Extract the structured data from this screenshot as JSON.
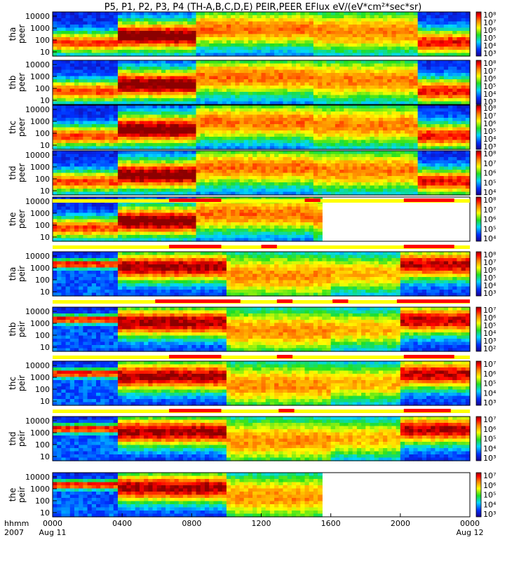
{
  "chart_data": {
    "type": "heatmap",
    "title": "P5, P1, P2, P3, P4 (TH-A,B,C,D,E) PEIR,PEER EFlux eV/(eV*cm²*sec*sr)",
    "x_axis": {
      "range_hours": [
        0,
        24
      ],
      "ticks": [
        {
          "label": "0000",
          "sub": "Aug 11"
        },
        {
          "label": "0400"
        },
        {
          "label": "0800"
        },
        {
          "label": "1200"
        },
        {
          "label": "1600"
        },
        {
          "label": "2000"
        },
        {
          "label": "0000",
          "sub": "Aug 12"
        }
      ],
      "left_label_top": "hhmm",
      "left_label_bottom": "2007"
    },
    "y_ticks": [
      "10000",
      "1000",
      "100",
      "10"
    ],
    "panels": [
      {
        "probe": "tha",
        "species": "peer",
        "colorbar": [
          "10⁸",
          "10⁷",
          "10⁶",
          "10⁵",
          "10⁴",
          "10³"
        ],
        "gap_start_hour": null
      },
      {
        "probe": "thb",
        "species": "peer",
        "colorbar": [
          "10⁸",
          "10⁷",
          "10⁶",
          "10⁵",
          "10⁴",
          "10³"
        ],
        "gap_start_hour": null
      },
      {
        "probe": "thc",
        "species": "peer",
        "colorbar": [
          "10⁸",
          "10⁷",
          "10⁶",
          "10⁵",
          "10⁴",
          "10³"
        ],
        "gap_start_hour": null
      },
      {
        "probe": "thd",
        "species": "peer",
        "colorbar": [
          "10⁸",
          "10⁷",
          "10⁶",
          "10⁵",
          "10⁴"
        ],
        "gap_start_hour": null
      },
      {
        "probe": "the",
        "species": "peer",
        "colorbar": [
          "10⁸",
          "10⁷",
          "10⁶",
          "10⁵",
          "10⁴"
        ],
        "gap_start_hour": 15.6
      },
      {
        "probe": "tha",
        "species": "peir",
        "colorbar": [
          "10⁸",
          "10⁷",
          "10⁶",
          "10⁵",
          "10⁴",
          "10³"
        ],
        "gap_start_hour": null
      },
      {
        "probe": "thb",
        "species": "peir",
        "colorbar": [
          "10⁷",
          "10⁶",
          "10⁵",
          "10⁴",
          "10³",
          "10²"
        ],
        "gap_start_hour": null
      },
      {
        "probe": "thc",
        "species": "peir",
        "colorbar": [
          "10⁷",
          "10⁶",
          "10⁵",
          "10⁴",
          "10³"
        ],
        "gap_start_hour": null
      },
      {
        "probe": "thd",
        "species": "peir",
        "colorbar": [
          "10⁷",
          "10⁶",
          "10⁵",
          "10⁴",
          "10³"
        ],
        "gap_start_hour": null
      },
      {
        "probe": "the",
        "species": "peir",
        "colorbar": [
          "10⁷",
          "10⁶",
          "10⁵",
          "10⁴",
          "10³"
        ],
        "gap_start_hour": 15.6
      }
    ],
    "mode_bars": [
      {
        "after_panel": 4,
        "fast_intervals_hours": [
          [
            6.7,
            9.7
          ],
          [
            14.5,
            15.4
          ],
          [
            20.2,
            23.1
          ]
        ]
      },
      {
        "after_panel": 5,
        "fast_intervals_hours": [
          [
            6.7,
            9.7
          ],
          [
            12.0,
            12.9
          ],
          [
            20.2,
            23.1
          ]
        ]
      },
      {
        "after_panel": 6,
        "fast_intervals_hours": [
          [
            5.9,
            10.8
          ],
          [
            12.9,
            13.8
          ],
          [
            16.1,
            17.0
          ],
          [
            19.8,
            24.0
          ]
        ]
      },
      {
        "after_panel": 7,
        "fast_intervals_hours": [
          [
            6.7,
            9.7
          ],
          [
            12.9,
            13.8
          ],
          [
            20.2,
            23.1
          ]
        ]
      },
      {
        "after_panel": 8,
        "fast_intervals_hours": [
          [
            6.7,
            9.7
          ],
          [
            13.0,
            13.9
          ],
          [
            20.2,
            22.9
          ]
        ]
      }
    ]
  }
}
